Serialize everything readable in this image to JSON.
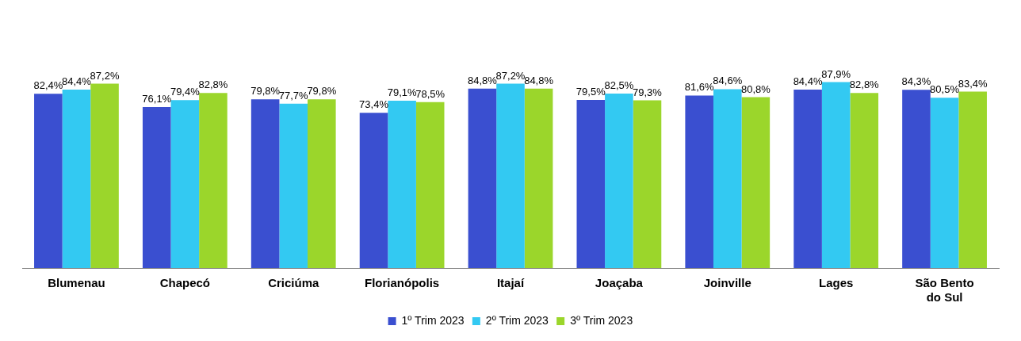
{
  "chart_data": {
    "type": "bar",
    "categories": [
      "Blumenau",
      "Chapecó",
      "Criciúma",
      "Florianópolis",
      "Itajaí",
      "Joaçaba",
      "Joinville",
      "Lages",
      "São Bento do Sul"
    ],
    "series": [
      {
        "name": "1º Trim 2023",
        "color": "#3a4fd0",
        "values": [
          82.4,
          76.1,
          79.8,
          73.4,
          84.8,
          79.5,
          81.6,
          84.4,
          84.3
        ],
        "value_labels": [
          "82,4%",
          "76,1%",
          "79,8%",
          "73,4%",
          "84,8%",
          "79,5%",
          "81,6%",
          "84,4%",
          "84,3%"
        ]
      },
      {
        "name": "2º Trim 2023",
        "color": "#33c9f2",
        "values": [
          84.4,
          79.4,
          77.7,
          79.1,
          87.2,
          82.5,
          84.6,
          87.9,
          80.5
        ],
        "value_labels": [
          "84,4%",
          "79,4%",
          "77,7%",
          "79,1%",
          "87,2%",
          "82,5%",
          "84,6%",
          "87,9%",
          "80,5%"
        ]
      },
      {
        "name": "3º Trim 2023",
        "color": "#9bd62b",
        "values": [
          87.2,
          82.8,
          79.8,
          78.5,
          84.8,
          79.3,
          80.8,
          82.8,
          83.4
        ],
        "value_labels": [
          "87,2%",
          "82,8%",
          "79,8%",
          "78,5%",
          "84,8%",
          "79,3%",
          "80,8%",
          "82,8%",
          "83,4%"
        ]
      }
    ],
    "legend": "bottom",
    "grid": false
  }
}
